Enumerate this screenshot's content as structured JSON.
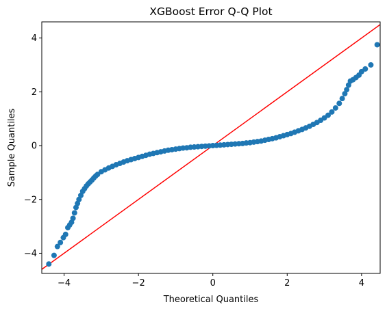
{
  "chart_data": {
    "type": "scatter",
    "title": "XGBoost Error Q-Q Plot",
    "xlabel": "Theoretical Quantiles",
    "ylabel": "Sample Quantiles",
    "xlim": [
      -4.6,
      4.5
    ],
    "ylim": [
      -4.75,
      4.6
    ],
    "xticks": [
      -4,
      -2,
      0,
      2,
      4
    ],
    "yticks": [
      -4,
      -2,
      0,
      2,
      4
    ],
    "xtick_labels": [
      "−4",
      "−2",
      "0",
      "2",
      "4"
    ],
    "ytick_labels": [
      "−4",
      "−2",
      "0",
      "2",
      "4"
    ],
    "grid": false,
    "colors": {
      "points": "#1f77b4",
      "reference_line": "#ff0000"
    },
    "reference_line": {
      "type": "45-degree",
      "points": [
        [
          -4.6,
          -4.6
        ],
        [
          4.5,
          4.5
        ]
      ]
    },
    "series": [
      {
        "points": [
          [
            -4.41,
            -4.4
          ],
          [
            -4.27,
            -4.08
          ],
          [
            -4.18,
            -3.75
          ],
          [
            -4.1,
            -3.6
          ],
          [
            -4.02,
            -3.42
          ],
          [
            -3.96,
            -3.3
          ],
          [
            -3.9,
            -3.05
          ],
          [
            -3.85,
            -2.95
          ],
          [
            -3.8,
            -2.85
          ],
          [
            -3.76,
            -2.7
          ],
          [
            -3.72,
            -2.5
          ],
          [
            -3.68,
            -2.3
          ],
          [
            -3.64,
            -2.15
          ],
          [
            -3.6,
            -2.0
          ],
          [
            -3.55,
            -1.85
          ],
          [
            -3.5,
            -1.7
          ],
          [
            -3.45,
            -1.6
          ],
          [
            -3.4,
            -1.5
          ],
          [
            -3.35,
            -1.42
          ],
          [
            -3.3,
            -1.35
          ],
          [
            -3.25,
            -1.28
          ],
          [
            -3.2,
            -1.2
          ],
          [
            -3.15,
            -1.13
          ],
          [
            -3.1,
            -1.07
          ],
          [
            -3.0,
            -0.97
          ],
          [
            -2.9,
            -0.9
          ],
          [
            -2.8,
            -0.83
          ],
          [
            -2.7,
            -0.77
          ],
          [
            -2.6,
            -0.71
          ],
          [
            -2.5,
            -0.66
          ],
          [
            -2.4,
            -0.61
          ],
          [
            -2.3,
            -0.56
          ],
          [
            -2.2,
            -0.52
          ],
          [
            -2.1,
            -0.48
          ],
          [
            -2.0,
            -0.44
          ],
          [
            -1.9,
            -0.4
          ],
          [
            -1.8,
            -0.36
          ],
          [
            -1.7,
            -0.32
          ],
          [
            -1.6,
            -0.29
          ],
          [
            -1.5,
            -0.26
          ],
          [
            -1.4,
            -0.23
          ],
          [
            -1.3,
            -0.2
          ],
          [
            -1.2,
            -0.17
          ],
          [
            -1.1,
            -0.15
          ],
          [
            -1.0,
            -0.13
          ],
          [
            -0.9,
            -0.11
          ],
          [
            -0.8,
            -0.09
          ],
          [
            -0.7,
            -0.08
          ],
          [
            -0.6,
            -0.06
          ],
          [
            -0.5,
            -0.05
          ],
          [
            -0.4,
            -0.04
          ],
          [
            -0.3,
            -0.03
          ],
          [
            -0.2,
            -0.02
          ],
          [
            -0.1,
            -0.01
          ],
          [
            0.0,
            0.0
          ],
          [
            0.1,
            0.01
          ],
          [
            0.2,
            0.02
          ],
          [
            0.3,
            0.03
          ],
          [
            0.4,
            0.04
          ],
          [
            0.5,
            0.05
          ],
          [
            0.6,
            0.06
          ],
          [
            0.7,
            0.07
          ],
          [
            0.8,
            0.08
          ],
          [
            0.9,
            0.1
          ],
          [
            1.0,
            0.11
          ],
          [
            1.1,
            0.13
          ],
          [
            1.2,
            0.15
          ],
          [
            1.3,
            0.17
          ],
          [
            1.4,
            0.2
          ],
          [
            1.5,
            0.23
          ],
          [
            1.6,
            0.26
          ],
          [
            1.7,
            0.29
          ],
          [
            1.8,
            0.33
          ],
          [
            1.9,
            0.37
          ],
          [
            2.0,
            0.41
          ],
          [
            2.1,
            0.45
          ],
          [
            2.2,
            0.5
          ],
          [
            2.3,
            0.55
          ],
          [
            2.4,
            0.6
          ],
          [
            2.5,
            0.66
          ],
          [
            2.6,
            0.72
          ],
          [
            2.7,
            0.79
          ],
          [
            2.8,
            0.86
          ],
          [
            2.9,
            0.94
          ],
          [
            3.0,
            1.03
          ],
          [
            3.1,
            1.13
          ],
          [
            3.2,
            1.25
          ],
          [
            3.3,
            1.4
          ],
          [
            3.4,
            1.57
          ],
          [
            3.48,
            1.75
          ],
          [
            3.55,
            1.93
          ],
          [
            3.6,
            2.08
          ],
          [
            3.65,
            2.25
          ],
          [
            3.7,
            2.4
          ],
          [
            3.77,
            2.45
          ],
          [
            3.85,
            2.53
          ],
          [
            3.93,
            2.62
          ],
          [
            4.0,
            2.75
          ],
          [
            4.1,
            2.85
          ],
          [
            4.25,
            3.0
          ],
          [
            4.42,
            3.75
          ]
        ]
      }
    ]
  }
}
